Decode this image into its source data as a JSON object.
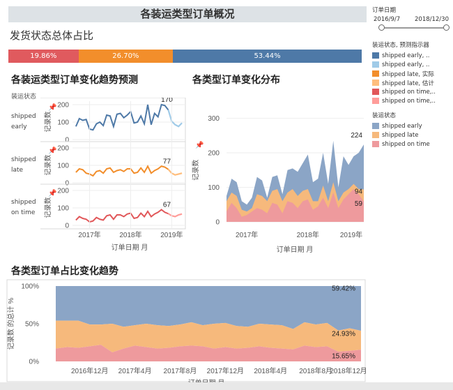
{
  "title": "各装运类型订单概况",
  "status_section": {
    "title": "发货状态总体占比",
    "segments": [
      {
        "label": "19.86%",
        "value": 19.86,
        "color": "#e05a5e"
      },
      {
        "label": "26.70%",
        "value": 26.7,
        "color": "#f28e2b"
      },
      {
        "label": "53.44%",
        "value": 53.44,
        "color": "#4e79a7"
      }
    ]
  },
  "forecast_panel": {
    "title": "各装运类型订单变化趋势预测",
    "row_header": "装运状态",
    "y_label": "记录数",
    "x_label": "订单日期 月",
    "x_ticks": [
      "2017年",
      "2018年",
      "2019年"
    ],
    "rows": [
      {
        "label": [
          "shipped",
          "early"
        ],
        "annotation": "170"
      },
      {
        "label": [
          "shipped",
          "late"
        ],
        "annotation": "77"
      },
      {
        "label": [
          "shipped",
          "on time"
        ],
        "annotation": "67"
      }
    ]
  },
  "distribution_panel": {
    "title": "各类型订单变化分布",
    "y_label": "记录数",
    "x_label": "订单日期 月",
    "x_ticks": [
      "2017年",
      "2018年",
      "2019年"
    ],
    "annotations": [
      "224",
      "94",
      "59"
    ]
  },
  "share_panel": {
    "title": "各类型订单占比变化趋势",
    "y_label": "记录数 的总计 %",
    "x_label": "订单日期 月",
    "x_ticks": [
      "2016年12月",
      "2017年4月",
      "2017年8月",
      "2017年12月",
      "2018年4月",
      "2018年8月",
      "2018年12月"
    ],
    "annotations": [
      "59.42%",
      "24.93%",
      "15.65%"
    ]
  },
  "sidebar": {
    "date_filter_title": "订单日期",
    "date_start": "2016/9/7",
    "date_end": "2018/12/30",
    "legend1_title": "装运状态, 预测指示器",
    "legend1": [
      {
        "label": "shipped early, ..",
        "color": "#4e79a7"
      },
      {
        "label": "shipped early, ..",
        "color": "#a0cbe8"
      },
      {
        "label": "shipped late, 实际",
        "color": "#f28e2b"
      },
      {
        "label": "shipped late, 估计",
        "color": "#ffbe7d"
      },
      {
        "label": "shipped on time,..",
        "color": "#e15759"
      },
      {
        "label": "shipped on time,..",
        "color": "#ff9d9a"
      }
    ],
    "legend2_title": "装运状态",
    "legend2": [
      {
        "label": "shipped early",
        "color": "#8ba5c6"
      },
      {
        "label": "shipped late",
        "color": "#f6b97c"
      },
      {
        "label": "shipped on time",
        "color": "#ee9a9d"
      }
    ]
  },
  "chart_data": [
    {
      "type": "line",
      "title": "各装运类型订单变化趋势预测",
      "ylabel": "记录数",
      "xlabel": "订单日期 月",
      "x": [
        "2016-09",
        "2016-10",
        "2016-11",
        "2016-12",
        "2017-01",
        "2017-02",
        "2017-03",
        "2017-04",
        "2017-05",
        "2017-06",
        "2017-07",
        "2017-08",
        "2017-09",
        "2017-10",
        "2017-11",
        "2017-12",
        "2018-01",
        "2018-02",
        "2018-03",
        "2018-04",
        "2018-05",
        "2018-06",
        "2018-07",
        "2018-08",
        "2018-09",
        "2018-10",
        "2018-11",
        "2018-12"
      ],
      "forecast_x": [
        "2019-01",
        "2019-02",
        "2019-03",
        "2019-04"
      ],
      "ylim": [
        0,
        220
      ],
      "series": [
        {
          "name": "shipped early",
          "values": [
            75,
            120,
            110,
            115,
            60,
            55,
            90,
            100,
            80,
            140,
            135,
            75,
            145,
            150,
            125,
            140,
            160,
            95,
            100,
            135,
            90,
            200,
            85,
            150,
            130,
            200,
            195,
            170
          ],
          "forecast": [
            105,
            85,
            75,
            95
          ]
        },
        {
          "name": "shipped late",
          "values": [
            60,
            80,
            75,
            55,
            50,
            40,
            65,
            70,
            55,
            80,
            85,
            60,
            70,
            75,
            65,
            80,
            80,
            55,
            60,
            85,
            60,
            95,
            55,
            70,
            80,
            95,
            90,
            77
          ],
          "forecast": [
            55,
            45,
            50,
            55
          ]
        },
        {
          "name": "shipped on time",
          "values": [
            30,
            50,
            40,
            35,
            20,
            25,
            45,
            35,
            30,
            55,
            60,
            35,
            60,
            60,
            50,
            65,
            70,
            40,
            45,
            70,
            50,
            80,
            50,
            65,
            75,
            90,
            75,
            67
          ],
          "forecast": [
            55,
            50,
            60,
            65
          ]
        }
      ]
    },
    {
      "type": "area",
      "title": "各类型订单变化分布",
      "ylabel": "记录数",
      "xlabel": "订单日期 月",
      "x": [
        "2016-09",
        "2016-10",
        "2016-11",
        "2016-12",
        "2017-01",
        "2017-02",
        "2017-03",
        "2017-04",
        "2017-05",
        "2017-06",
        "2017-07",
        "2017-08",
        "2017-09",
        "2017-10",
        "2017-11",
        "2017-12",
        "2018-01",
        "2018-02",
        "2018-03",
        "2018-04",
        "2018-05",
        "2018-06",
        "2018-07",
        "2018-08",
        "2018-09",
        "2018-10",
        "2018-11",
        "2018-12"
      ],
      "ylim": [
        0,
        380
      ],
      "stacked": true,
      "series": [
        {
          "name": "shipped on time",
          "values": [
            30,
            55,
            40,
            15,
            20,
            30,
            40,
            35,
            25,
            55,
            50,
            25,
            60,
            55,
            40,
            60,
            65,
            35,
            45,
            70,
            40,
            85,
            40,
            65,
            80,
            95,
            80,
            59
          ]
        },
        {
          "name": "shipped late",
          "values": [
            60,
            85,
            75,
            35,
            30,
            40,
            80,
            75,
            60,
            90,
            95,
            60,
            85,
            95,
            75,
            90,
            95,
            60,
            60,
            105,
            60,
            115,
            60,
            85,
            95,
            110,
            95,
            94
          ]
        },
        {
          "name": "shipped early",
          "values": [
            75,
            125,
            115,
            60,
            50,
            70,
            130,
            120,
            70,
            130,
            135,
            80,
            150,
            155,
            145,
            170,
            195,
            115,
            125,
            200,
            110,
            235,
            100,
            190,
            165,
            190,
            200,
            224
          ]
        }
      ]
    },
    {
      "type": "area",
      "title": "各类型订单占比变化趋势",
      "ylabel": "记录数 的总计 %",
      "xlabel": "订单日期 月",
      "x": [
        "2016-09",
        "2016-10",
        "2016-11",
        "2016-12",
        "2017-01",
        "2017-02",
        "2017-03",
        "2017-04",
        "2017-05",
        "2017-06",
        "2017-07",
        "2017-08",
        "2017-09",
        "2017-10",
        "2017-11",
        "2017-12",
        "2018-01",
        "2018-02",
        "2018-03",
        "2018-04",
        "2018-05",
        "2018-06",
        "2018-07",
        "2018-08",
        "2018-09",
        "2018-10",
        "2018-11",
        "2018-12"
      ],
      "ylim": [
        0,
        100
      ],
      "percent_stacked": true,
      "series": [
        {
          "name": "shipped on time",
          "values": [
            17,
            19,
            18,
            20,
            22,
            12,
            17,
            21,
            19,
            17,
            18,
            20,
            21,
            20,
            17,
            19,
            17,
            18,
            20,
            18,
            17,
            16,
            21,
            19,
            20,
            13,
            14,
            15.65
          ]
        },
        {
          "name": "shipped late",
          "values": [
            37,
            35,
            36,
            29,
            27,
            38,
            29,
            27,
            31,
            31,
            29,
            29,
            31,
            28,
            33,
            32,
            30,
            28,
            30,
            31,
            31,
            27,
            31,
            30,
            31,
            28,
            30,
            24.93
          ]
        },
        {
          "name": "shipped early",
          "values": [
            46,
            46,
            46,
            51,
            51,
            50,
            54,
            52,
            50,
            52,
            53,
            51,
            48,
            52,
            50,
            49,
            53,
            54,
            50,
            51,
            52,
            57,
            48,
            51,
            49,
            59,
            56,
            59.42
          ]
        }
      ]
    }
  ]
}
